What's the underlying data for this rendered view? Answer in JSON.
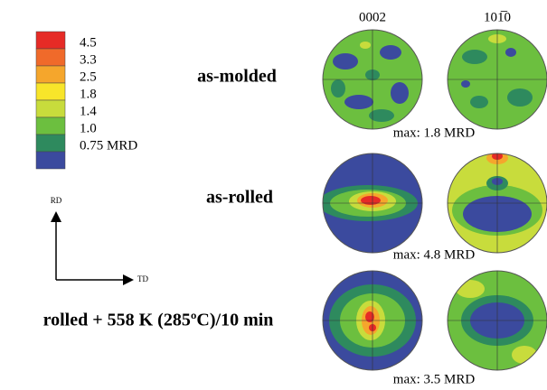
{
  "legend": {
    "levels": [
      {
        "label": "4.5",
        "color": "#e62b26"
      },
      {
        "label": "3.3",
        "color": "#f06a2a"
      },
      {
        "label": "2.5",
        "color": "#f5a62c"
      },
      {
        "label": "1.8",
        "color": "#f8e52a"
      },
      {
        "label": "1.4",
        "color": "#c8dc3c"
      },
      {
        "label": "1.0",
        "color": "#6cbf3f"
      },
      {
        "label": "0.75 MRD",
        "color": "#2e8a5e"
      },
      {
        "label": null,
        "color": "#3b4a9e"
      }
    ]
  },
  "axes": {
    "vertical": "RD",
    "horizontal": "TD"
  },
  "columns": [
    "0002",
    "101̅0"
  ],
  "rows": [
    {
      "label": "as-molded",
      "max": "max: 1.8 MRD"
    },
    {
      "label": "as-rolled",
      "max": "max: 4.8 MRD"
    },
    {
      "label": "rolled + 558 K (285ºC)/10 min",
      "max": "max: 3.5 MRD"
    }
  ]
}
